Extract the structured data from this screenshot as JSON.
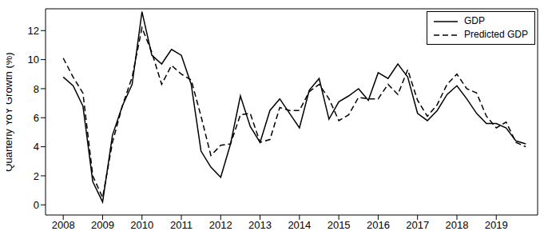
{
  "chart_data": {
    "type": "line",
    "y_label": "Quarterly YoY Growth (%)",
    "x": [
      2008,
      2008.25,
      2008.5,
      2008.75,
      2009,
      2009.25,
      2009.5,
      2009.75,
      2010,
      2010.25,
      2010.5,
      2010.75,
      2011,
      2011.25,
      2011.5,
      2011.75,
      2012,
      2012.25,
      2012.5,
      2012.75,
      2013,
      2013.25,
      2013.5,
      2013.75,
      2014,
      2014.25,
      2014.5,
      2014.75,
      2015,
      2015.25,
      2015.5,
      2015.75,
      2016,
      2016.25,
      2016.5,
      2016.75,
      2017,
      2017.25,
      2017.5,
      2017.75,
      2018,
      2018.25,
      2018.5,
      2018.75,
      2019,
      2019.25,
      2019.5,
      2019.75
    ],
    "series": [
      {
        "name": "GDP",
        "color": "#000000",
        "line_style": "solid",
        "values": [
          8.8,
          8.2,
          6.8,
          1.6,
          0.2,
          4.8,
          6.8,
          8.3,
          13.3,
          10.3,
          9.7,
          10.7,
          10.3,
          8.3,
          3.7,
          2.6,
          1.9,
          4.2,
          7.5,
          5.4,
          4.3,
          6.5,
          7.3,
          6.3,
          5.3,
          7.9,
          8.7,
          5.9,
          7.1,
          7.5,
          8.0,
          7.2,
          9.1,
          8.7,
          9.7,
          8.8,
          6.3,
          5.8,
          6.5,
          7.6,
          8.2,
          7.3,
          6.3,
          5.6,
          5.6,
          5.3,
          4.4,
          4.2
        ]
      },
      {
        "name": "Predicted GDP",
        "color": "#000000",
        "line_style": "dashed",
        "values": [
          10.1,
          8.8,
          7.7,
          2.0,
          0.5,
          4.3,
          6.8,
          8.8,
          12.2,
          10.5,
          8.3,
          9.6,
          9.0,
          8.6,
          6.1,
          3.4,
          4.1,
          4.2,
          6.2,
          6.3,
          4.3,
          4.5,
          6.7,
          6.5,
          6.5,
          7.8,
          8.3,
          7.3,
          5.8,
          6.2,
          7.4,
          7.3,
          7.3,
          8.3,
          7.6,
          9.3,
          7.2,
          6.1,
          6.9,
          8.3,
          9.0,
          8.0,
          7.7,
          6.1,
          5.3,
          5.7,
          4.3,
          4.0
        ]
      }
    ],
    "xlim": [
      2007.55,
      2020.05
    ],
    "xticks": [
      2008,
      2009,
      2010,
      2011,
      2012,
      2013,
      2014,
      2015,
      2016,
      2017,
      2018,
      2019
    ],
    "ylim": [
      -0.7,
      13.5
    ],
    "yticks": [
      0,
      2,
      4,
      6,
      8,
      10,
      12
    ],
    "grid": false,
    "legend": "top-right"
  }
}
